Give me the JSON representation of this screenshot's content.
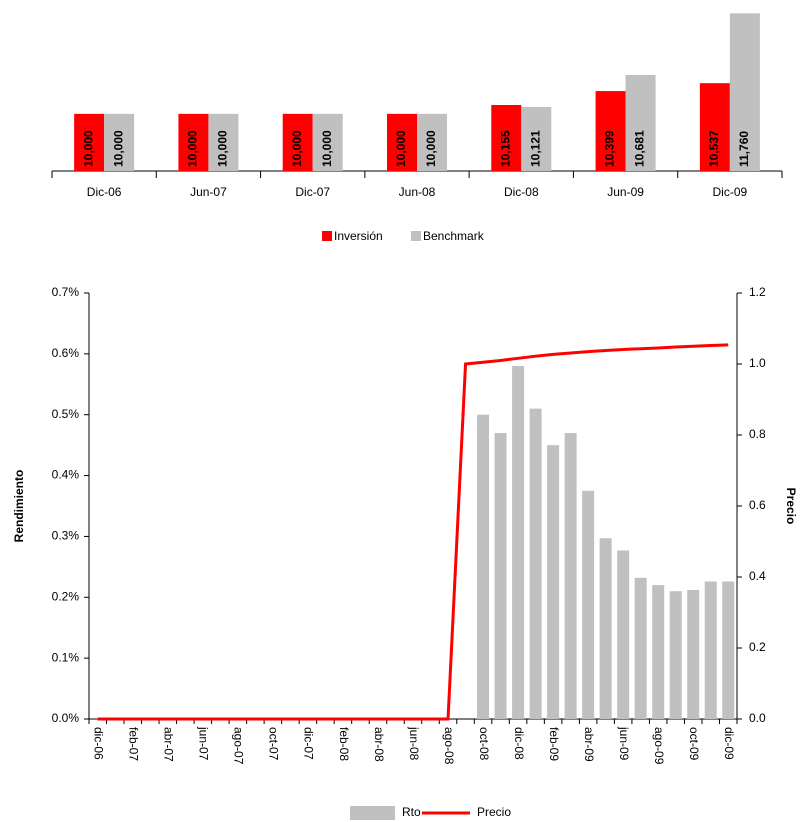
{
  "chart_data": [
    {
      "type": "bar",
      "categories": [
        "Dic-06",
        "Jun-07",
        "Dic-07",
        "Jun-08",
        "Dic-08",
        "Jun-09",
        "Dic-09"
      ],
      "series": [
        {
          "name": "Inversión",
          "color": "#ff0000",
          "values": [
            10000,
            10000,
            10000,
            10000,
            10155,
            10399,
            10537
          ],
          "value_labels": [
            "10,000",
            "10,000",
            "10,000",
            "10,000",
            "10,155",
            "10,399",
            "10,537"
          ]
        },
        {
          "name": "Benchmark",
          "color": "#c0c0c0",
          "values": [
            10000,
            10000,
            10000,
            10000,
            10121,
            10681,
            11760
          ],
          "value_labels": [
            "10,000",
            "10,000",
            "10,000",
            "10,000",
            "10,121",
            "10,681",
            "11,760"
          ]
        }
      ],
      "ylim": [
        9000,
        11800
      ]
    },
    {
      "type": "combo",
      "y_label": "Rendimiento",
      "y2_label": "Precio",
      "categories": [
        "dic-06",
        null,
        "feb-07",
        null,
        "abr-07",
        null,
        "jun-07",
        null,
        "ago-07",
        null,
        "oct-07",
        null,
        "dic-07",
        null,
        "feb-08",
        null,
        "abr-08",
        null,
        "jun-08",
        null,
        "ago-08",
        null,
        "oct-08",
        null,
        "dic-08",
        null,
        "feb-09",
        null,
        "abr-09",
        null,
        "jun-09",
        null,
        "ago-09",
        null,
        "oct-09",
        null,
        "dic-09"
      ],
      "series": [
        {
          "name": "Rto",
          "type": "bar",
          "color": "#c0c0c0",
          "values": [
            0,
            0,
            0,
            0,
            0,
            0,
            0,
            0,
            0,
            0,
            0,
            0,
            0,
            0,
            0,
            0,
            0,
            0,
            0,
            0,
            0,
            0,
            0.5,
            0.47,
            0.58,
            0.51,
            0.45,
            0.47,
            0.375,
            0.297,
            0.277,
            0.232,
            0.22,
            0.21,
            0.212,
            0.226,
            0.226
          ]
        },
        {
          "name": "Precio",
          "type": "line",
          "axis": "y2",
          "color": "#ff0000",
          "values": [
            0,
            0,
            0,
            0,
            0,
            0,
            0,
            0,
            0,
            0,
            0,
            0,
            0,
            0,
            0,
            0,
            0,
            0,
            0,
            0,
            0,
            1.0,
            1.005,
            1.01,
            1.016,
            1.022,
            1.027,
            1.031,
            1.035,
            1.038,
            1.041,
            1.043,
            1.045,
            1.048,
            1.05,
            1.052,
            1.054
          ]
        }
      ],
      "ylim": [
        0,
        0.7
      ],
      "yticks": [
        {
          "value": 0,
          "label": "0.0%"
        },
        {
          "value": 0.1,
          "label": "0.1%"
        },
        {
          "value": 0.2,
          "label": "0.2%"
        },
        {
          "value": 0.3,
          "label": "0.3%"
        },
        {
          "value": 0.4,
          "label": "0.4%"
        },
        {
          "value": 0.5,
          "label": "0.5%"
        },
        {
          "value": 0.6,
          "label": "0.6%"
        },
        {
          "value": 0.7,
          "label": "0.7%"
        }
      ],
      "y2lim": [
        0,
        1.2
      ],
      "y2ticks": [
        {
          "value": 0,
          "label": "0.0"
        },
        0.2,
        0.4,
        0.6,
        0.8,
        {
          "value": 1,
          "label": "1.0"
        },
        {
          "value": 1.2,
          "label": "1.2"
        }
      ]
    }
  ]
}
